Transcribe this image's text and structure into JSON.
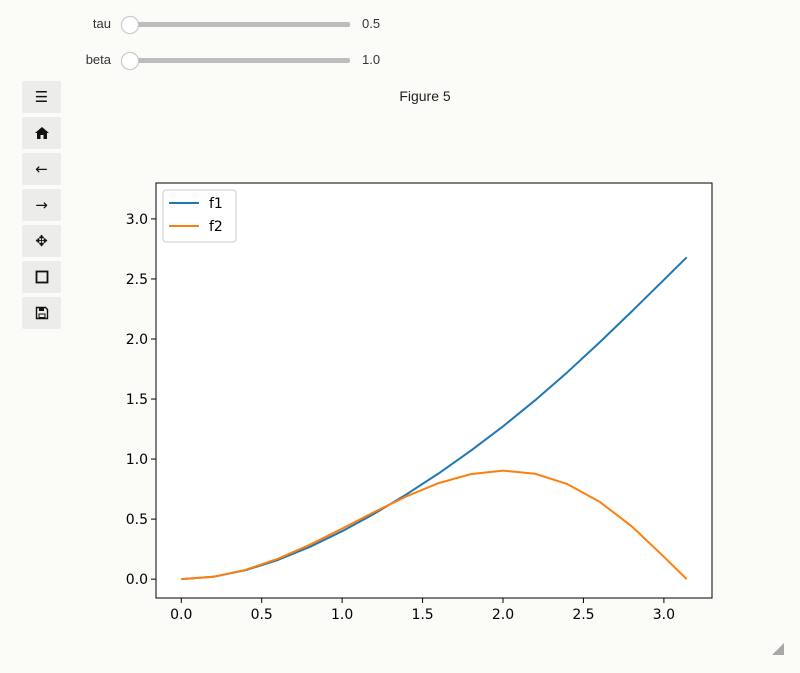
{
  "sliders": [
    {
      "label": "tau",
      "value": "0.5"
    },
    {
      "label": "beta",
      "value": "1.0"
    }
  ],
  "toolbar": {
    "icons": [
      "menu-icon",
      "home-icon",
      "back-arrow-icon",
      "forward-arrow-icon",
      "pan-icon",
      "zoom-rect-icon",
      "save-icon"
    ]
  },
  "figure_title": "Figure 5",
  "chart_data": {
    "type": "line",
    "x_ticks": [
      "0.0",
      "0.5",
      "1.0",
      "1.5",
      "2.0",
      "2.5",
      "3.0"
    ],
    "y_ticks": [
      "0.0",
      "0.5",
      "1.0",
      "1.5",
      "2.0",
      "2.5",
      "3.0"
    ],
    "xlim": [
      -0.157,
      3.299
    ],
    "ylim": [
      -0.157,
      3.299
    ],
    "legend": "upper-left",
    "grid": false,
    "series": [
      {
        "name": "f1",
        "color": "#1f77b4",
        "x": [
          0.0,
          0.2,
          0.4,
          0.6,
          0.8,
          1.0,
          1.2,
          1.4,
          1.6,
          1.8,
          2.0,
          2.2,
          2.4,
          2.6,
          2.8,
          3.0,
          3.1416
        ],
        "y": [
          0.0,
          0.0193,
          0.0744,
          0.1597,
          0.2694,
          0.3991,
          0.5453,
          0.7062,
          0.8808,
          1.0693,
          1.2723,
          1.4904,
          1.7237,
          1.9709,
          2.229,
          2.4929,
          2.68
        ]
      },
      {
        "name": "f2",
        "color": "#ff7f0e",
        "x": [
          0.0,
          0.2,
          0.4,
          0.6,
          0.8,
          1.0,
          1.2,
          1.4,
          1.6,
          1.8,
          2.0,
          2.2,
          2.4,
          2.6,
          2.8,
          3.0,
          3.1416
        ],
        "y": [
          0.0,
          0.0199,
          0.0779,
          0.1694,
          0.287,
          0.4207,
          0.5593,
          0.6901,
          0.7996,
          0.8746,
          0.9036,
          0.8777,
          0.7917,
          0.6446,
          0.4401,
          0.1862,
          0.0
        ]
      }
    ]
  }
}
